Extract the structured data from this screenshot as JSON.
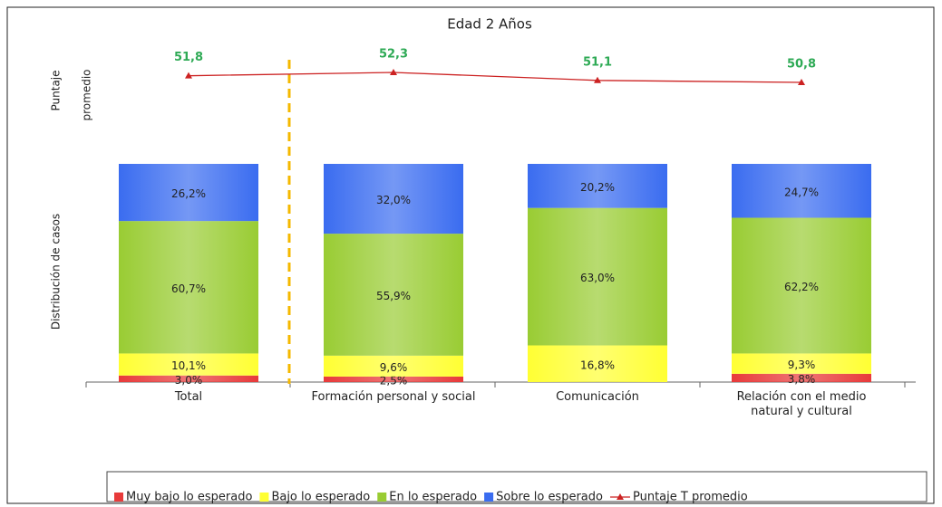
{
  "chart_data": {
    "type": "stacked_bar_line",
    "title": "Edad 2 Años",
    "ylabel": "Distribución de casos",
    "line_axis_label": [
      "Puntaje",
      "promedio"
    ],
    "categories": [
      "Total",
      "Formación personal y social",
      "Comunicación",
      "Relación con el medio natural y cultural"
    ],
    "ylim": [
      0,
      100
    ],
    "series": [
      {
        "name": "Muy bajo lo esperado",
        "color": "#e83a3a",
        "values": [
          3.0,
          2.5,
          null,
          3.8
        ],
        "value_labels": [
          "3,0%",
          "2,5%",
          null,
          "3,8%"
        ]
      },
      {
        "name": "Bajo lo esperado",
        "color": "#ffff33",
        "values": [
          10.1,
          9.6,
          16.8,
          9.3
        ],
        "value_labels": [
          "10,1%",
          "9,6%",
          "16,8%",
          "9,3%"
        ]
      },
      {
        "name": "En lo esperado",
        "color": "#99cc33",
        "values": [
          60.7,
          55.9,
          63.0,
          62.2
        ],
        "value_labels": [
          "60,7%",
          "55,9%",
          "63,0%",
          "62,2%"
        ]
      },
      {
        "name": "Sobre lo esperado",
        "color": "#3a6cf0",
        "values": [
          26.2,
          32.0,
          20.2,
          24.7
        ],
        "value_labels": [
          "26,2%",
          "32,0%",
          "20,2%",
          "24,7%"
        ]
      }
    ],
    "line": {
      "name": "Puntaje T promedio",
      "color": "#cc2222",
      "label_color": "#2eaa55",
      "values": [
        51.8,
        52.3,
        51.1,
        50.8
      ],
      "value_labels": [
        "51,8",
        "52,3",
        "51,1",
        "50,8"
      ]
    }
  }
}
